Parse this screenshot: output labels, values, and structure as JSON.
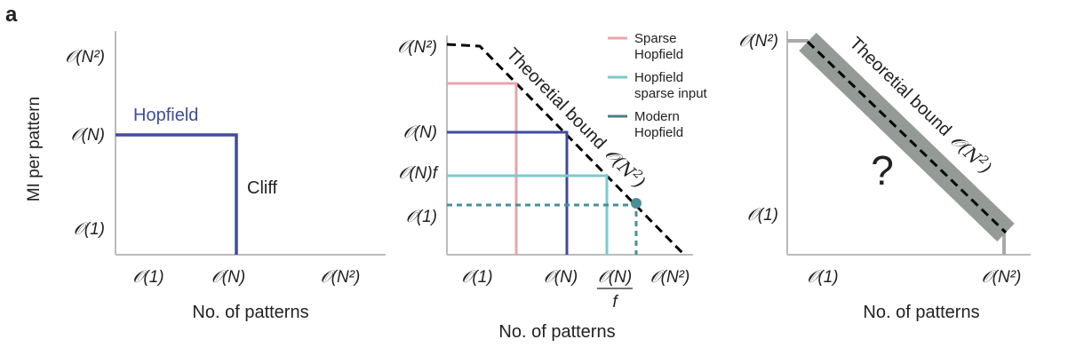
{
  "panel_label": "a",
  "chart_data": [
    {
      "type": "line",
      "title": "",
      "ylabel": "MI per pattern",
      "xlabel": "No. of patterns",
      "x_ticks": [
        "𝒪(1)",
        "𝒪(N)",
        "𝒪(N²)"
      ],
      "y_ticks": [
        "𝒪(N²)",
        "𝒪(N)",
        "𝒪(1)"
      ],
      "series": [
        {
          "name": "Hopfield",
          "color": "#3f4b9e",
          "style": "solid",
          "points": [
            [
              "0",
              "𝒪(N)"
            ],
            [
              "𝒪(N)",
              "𝒪(N)"
            ],
            [
              "𝒪(N)",
              "0"
            ]
          ]
        }
      ],
      "annotations": [
        "Cliff"
      ]
    },
    {
      "type": "line",
      "title": "",
      "xlabel": "No. of patterns",
      "x_ticks": [
        "𝒪(1)",
        "𝒪(N)",
        "𝒪(N)/f",
        "𝒪(N²)"
      ],
      "y_ticks": [
        "𝒪(N²)",
        "𝒪(N)",
        "𝒪(N)f",
        "𝒪(1)"
      ],
      "legend_position": "top-right",
      "legend": [
        {
          "name": "Sparse Hopfield",
          "color": "#e8a5ab"
        },
        {
          "name": "Hopfield sparse input",
          "color": "#7ec9cb"
        },
        {
          "name": "Modern Hopfield",
          "color": "#4a7f86"
        }
      ],
      "series": [
        {
          "name": "Sparse Hopfield",
          "color": "#e8a5ab",
          "style": "solid"
        },
        {
          "name": "Hopfield",
          "color": "#3f4b9e",
          "style": "solid",
          "points": [
            [
              "0",
              "𝒪(N)"
            ],
            [
              "𝒪(N)",
              "𝒪(N)"
            ],
            [
              "𝒪(N)",
              "0"
            ]
          ]
        },
        {
          "name": "Hopfield sparse input",
          "color": "#7ec9cb",
          "style": "solid",
          "points": [
            [
              "0",
              "𝒪(N)f"
            ],
            [
              "𝒪(N)/f",
              "𝒪(N)f"
            ],
            [
              "𝒪(N)/f",
              "0"
            ]
          ]
        },
        {
          "name": "Modern Hopfield",
          "color": "#4a7f86",
          "style": "dotted",
          "points": [
            [
              "0",
              "𝒪(1)"
            ],
            [
              "𝒪(N²)",
              "𝒪(1)"
            ]
          ]
        },
        {
          "name": "Theoretial bound",
          "color": "#000000",
          "style": "dashed"
        }
      ],
      "annotations": [
        "Theoretial bound 𝒪(N²)"
      ]
    },
    {
      "type": "line",
      "title": "",
      "xlabel": "No. of patterns",
      "x_ticks": [
        "𝒪(1)",
        "𝒪(N²)"
      ],
      "y_ticks": [
        "𝒪(N²)",
        "𝒪(1)"
      ],
      "series": [
        {
          "name": "Theoretial bound",
          "color": "#000000",
          "style": "dashed",
          "points": [
            [
              "𝒪(1)",
              "𝒪(N²)"
            ],
            [
              "𝒪(N²)",
              "𝒪(1)"
            ]
          ]
        }
      ],
      "annotations": [
        "Theoretial bound 𝒪(N²)",
        "?"
      ]
    }
  ],
  "text": {
    "p1_hopfield": "Hopfield",
    "p1_cliff": "Cliff",
    "p2_bound": "Theoretial bound",
    "p2_bound_o": "𝒪(N",
    "p3_bound": "Theoretial bound",
    "p3_bound_o": "𝒪(N",
    "p3_question": "?",
    "leg1a": "Sparse",
    "leg1b": "Hopfield",
    "leg2a": "Hopfield",
    "leg2b": "sparse input",
    "leg3a": "Modern",
    "leg3b": "Hopfield",
    "frac_f": "f"
  }
}
